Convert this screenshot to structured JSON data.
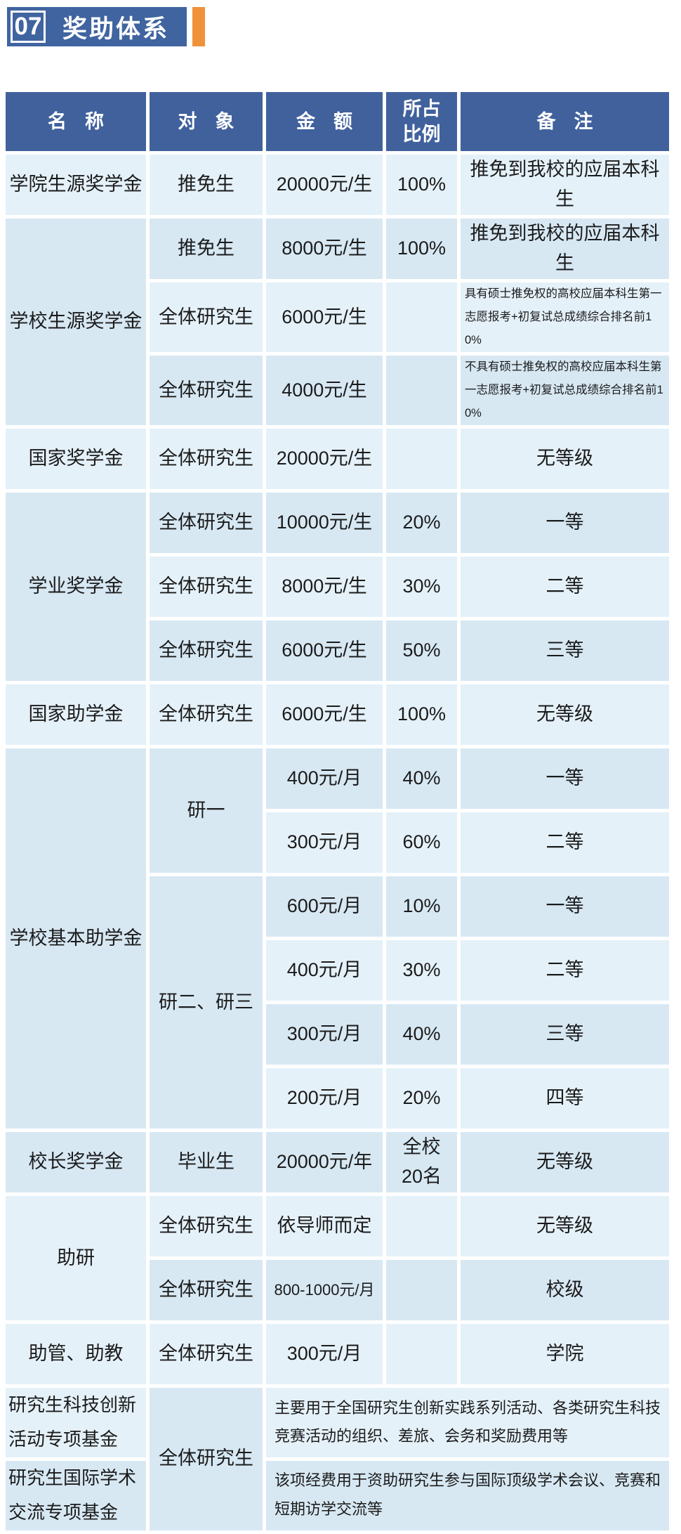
{
  "banner": {
    "number": "07",
    "title": "奖助体系"
  },
  "colors": {
    "banner_blue": "#4064a0",
    "header_blue": "#40619c",
    "accent_orange": "#f0923c",
    "row_light": "#e5f1f9",
    "row_mid": "#d7e8f3",
    "text": "#1b1b1b"
  },
  "table": {
    "columns": [
      {
        "key": "name",
        "label": "名称"
      },
      {
        "key": "target",
        "label": "对象"
      },
      {
        "key": "amount",
        "label": "金额"
      },
      {
        "key": "ratio",
        "label": "所占\n比例"
      },
      {
        "key": "remark",
        "label": "备注"
      }
    ],
    "rows": [
      [
        {
          "t": "学院生源奖学金"
        },
        {
          "t": "推免生"
        },
        {
          "t": "20000元/生"
        },
        {
          "t": "100%"
        },
        {
          "t": "推免到我校的应届本科生"
        }
      ],
      [
        {
          "t": "学校生源奖学金",
          "rs": 3
        },
        {
          "t": "推免生"
        },
        {
          "t": "8000元/生"
        },
        {
          "t": "100%"
        },
        {
          "t": "推免到我校的应届本科生"
        }
      ],
      [
        {
          "t": "全体研究生"
        },
        {
          "t": "6000元/生"
        },
        {
          "t": ""
        },
        {
          "t": "具有硕士推免权的高校应届本科生第一志愿报考+初复试总成绩综合排名前10%"
        }
      ],
      [
        {
          "t": "全体研究生"
        },
        {
          "t": "4000元/生"
        },
        {
          "t": ""
        },
        {
          "t": "不具有硕士推免权的高校应届本科生第一志愿报考+初复试总成绩综合排名前10%"
        }
      ],
      [
        {
          "t": "国家奖学金"
        },
        {
          "t": "全体研究生"
        },
        {
          "t": "20000元/生"
        },
        {
          "t": ""
        },
        {
          "t": "无等级"
        }
      ],
      [
        {
          "t": "学业奖学金",
          "rs": 3
        },
        {
          "t": "全体研究生"
        },
        {
          "t": "10000元/生"
        },
        {
          "t": "20%"
        },
        {
          "t": "一等"
        }
      ],
      [
        {
          "t": "全体研究生"
        },
        {
          "t": "8000元/生"
        },
        {
          "t": "30%"
        },
        {
          "t": "二等"
        }
      ],
      [
        {
          "t": "全体研究生"
        },
        {
          "t": "6000元/生"
        },
        {
          "t": "50%"
        },
        {
          "t": "三等"
        }
      ],
      [
        {
          "t": "国家助学金"
        },
        {
          "t": "全体研究生"
        },
        {
          "t": "6000元/生"
        },
        {
          "t": "100%"
        },
        {
          "t": "无等级"
        }
      ],
      [
        {
          "t": "学校基本助学金",
          "rs": 6
        },
        {
          "t": "研一",
          "rs": 2
        },
        {
          "t": "400元/月"
        },
        {
          "t": "40%"
        },
        {
          "t": "一等"
        }
      ],
      [
        {
          "t": "300元/月"
        },
        {
          "t": "60%"
        },
        {
          "t": "二等"
        }
      ],
      [
        {
          "t": "研二、研三",
          "rs": 4
        },
        {
          "t": "600元/月"
        },
        {
          "t": "10%"
        },
        {
          "t": "一等"
        }
      ],
      [
        {
          "t": "400元/月"
        },
        {
          "t": "30%"
        },
        {
          "t": "二等"
        }
      ],
      [
        {
          "t": "300元/月"
        },
        {
          "t": "40%"
        },
        {
          "t": "三等"
        }
      ],
      [
        {
          "t": "200元/月"
        },
        {
          "t": "20%"
        },
        {
          "t": "四等"
        }
      ],
      [
        {
          "t": "校长奖学金"
        },
        {
          "t": "毕业生"
        },
        {
          "t": "20000元/年"
        },
        {
          "t": "全校\n20名"
        },
        {
          "t": "无等级"
        }
      ],
      [
        {
          "t": "助研",
          "rs": 2
        },
        {
          "t": "全体研究生"
        },
        {
          "t": "依导师而定"
        },
        {
          "t": ""
        },
        {
          "t": "无等级"
        }
      ],
      [
        {
          "t": "全体研究生"
        },
        {
          "t": "800-1000元/月"
        },
        {
          "t": ""
        },
        {
          "t": "校级"
        }
      ],
      [
        {
          "t": "助管、助教"
        },
        {
          "t": "全体研究生"
        },
        {
          "t": "300元/月"
        },
        {
          "t": ""
        },
        {
          "t": "学院"
        }
      ],
      [
        {
          "t": "研究生科技创新活动专项基金"
        },
        {
          "t": "全体研究生",
          "rs": 2,
          "sh": "m"
        },
        {
          "t": "主要用于全国研究生创新实践系列活动、各类研究生科技竞赛活动的组织、差旅、会务和奖励费用等",
          "cs": 3
        }
      ],
      [
        {
          "t": "研究生国际学术交流专项基金"
        },
        {
          "t": "该项经费用于资助研究生参与国际顶级学术会议、竞赛和短期访学交流等",
          "cs": 3
        }
      ]
    ]
  }
}
